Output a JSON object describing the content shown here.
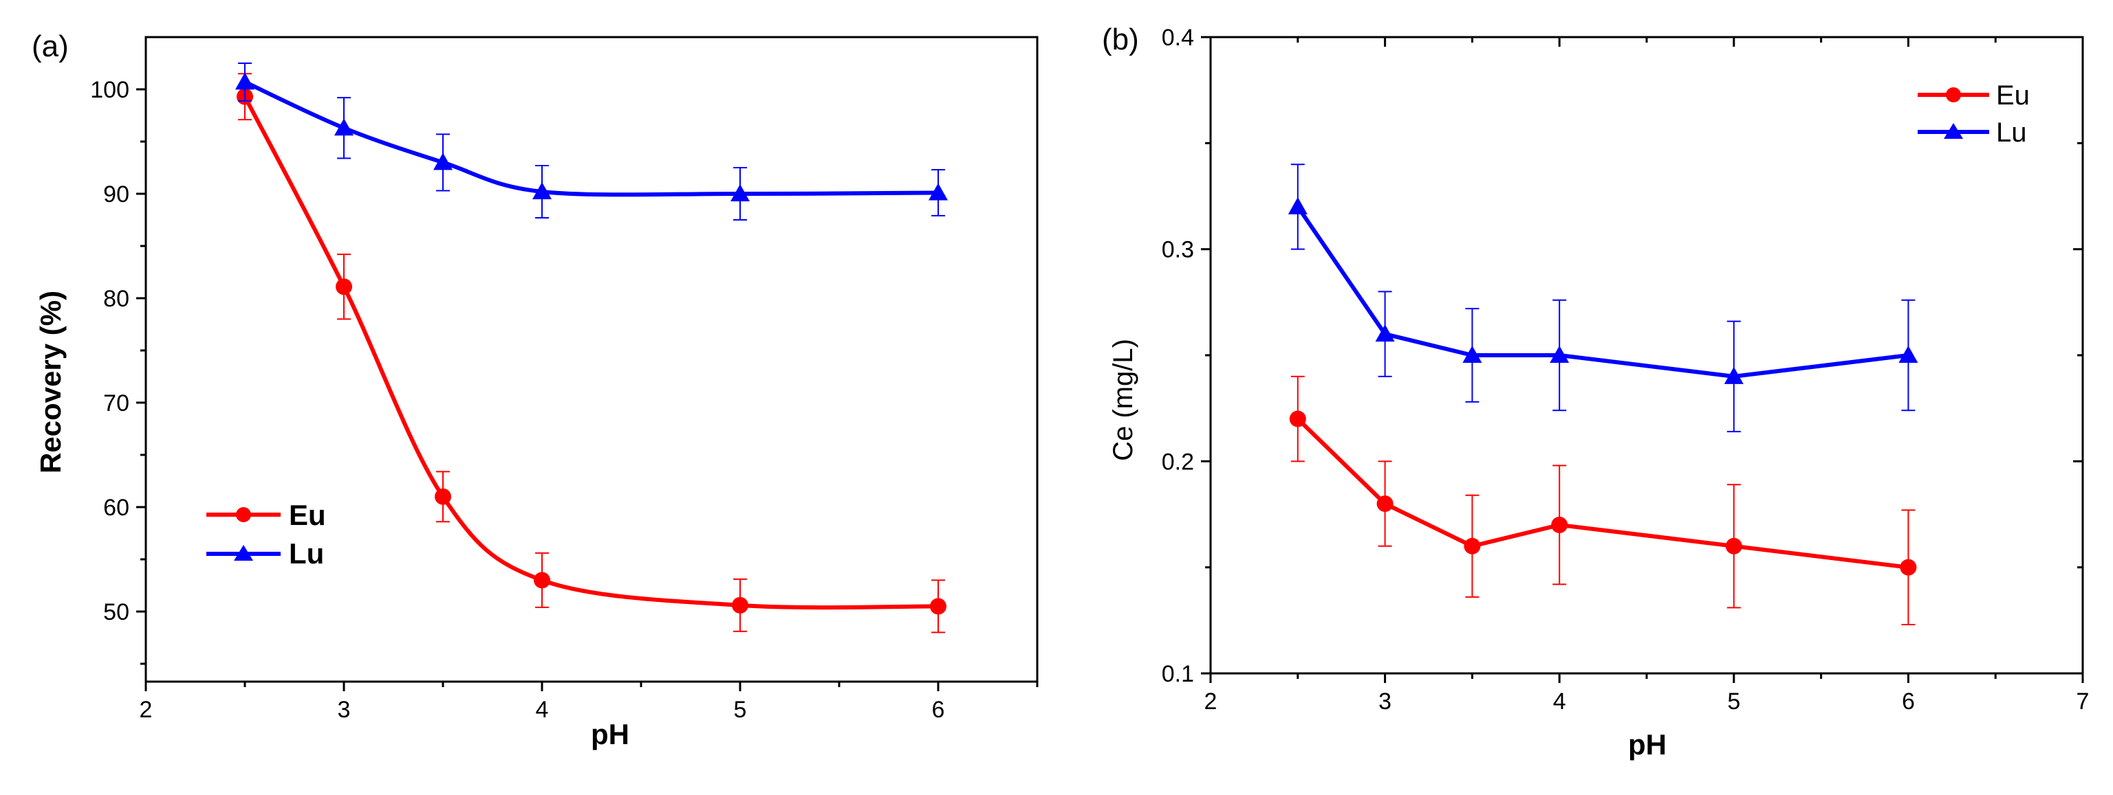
{
  "chart_data": [
    {
      "panel_label": "(a)",
      "type": "line",
      "xlabel": "pH",
      "ylabel": "Recovery (%)",
      "xlim": [
        2,
        6.5
      ],
      "ylim": [
        45,
        105
      ],
      "xticks": [
        2,
        3,
        4,
        5,
        6
      ],
      "yticks": [
        50,
        60,
        70,
        80,
        90,
        100
      ],
      "x": [
        2.5,
        3,
        3.5,
        4,
        5,
        6
      ],
      "legend_position": "bottom-left",
      "line_style": "smooth",
      "series": [
        {
          "name": "Eu",
          "color": "#ff0000",
          "marker": "circle",
          "values": [
            99.3,
            81.1,
            61.0,
            53.0,
            50.6,
            50.5
          ],
          "errors": [
            2.2,
            3.1,
            2.4,
            2.6,
            2.5,
            2.5
          ]
        },
        {
          "name": "Lu",
          "color": "#0000ff",
          "marker": "triangle",
          "values": [
            100.7,
            96.3,
            93.0,
            90.2,
            90.0,
            90.1
          ],
          "errors": [
            1.8,
            2.9,
            2.7,
            2.5,
            2.5,
            2.2
          ]
        }
      ]
    },
    {
      "panel_label": "(b)",
      "type": "line",
      "xlabel": "pH",
      "ylabel": "Ce (mg/L)",
      "xlim": [
        2,
        7
      ],
      "ylim": [
        0.1,
        0.4
      ],
      "xticks": [
        2,
        3,
        4,
        5,
        6,
        7
      ],
      "yticks": [
        0.1,
        0.2,
        0.3,
        0.4
      ],
      "x": [
        2.5,
        3,
        3.5,
        4,
        5,
        6
      ],
      "legend_position": "top-right",
      "line_style": "straight",
      "series": [
        {
          "name": "Eu",
          "color": "#ff0000",
          "marker": "circle",
          "values": [
            0.22,
            0.18,
            0.16,
            0.17,
            0.16,
            0.15
          ],
          "errors": [
            0.02,
            0.02,
            0.024,
            0.028,
            0.029,
            0.027
          ]
        },
        {
          "name": "Lu",
          "color": "#0000ff",
          "marker": "triangle",
          "values": [
            0.32,
            0.26,
            0.25,
            0.25,
            0.24,
            0.25
          ],
          "errors": [
            0.02,
            0.02,
            0.022,
            0.026,
            0.026,
            0.026
          ]
        }
      ]
    }
  ]
}
